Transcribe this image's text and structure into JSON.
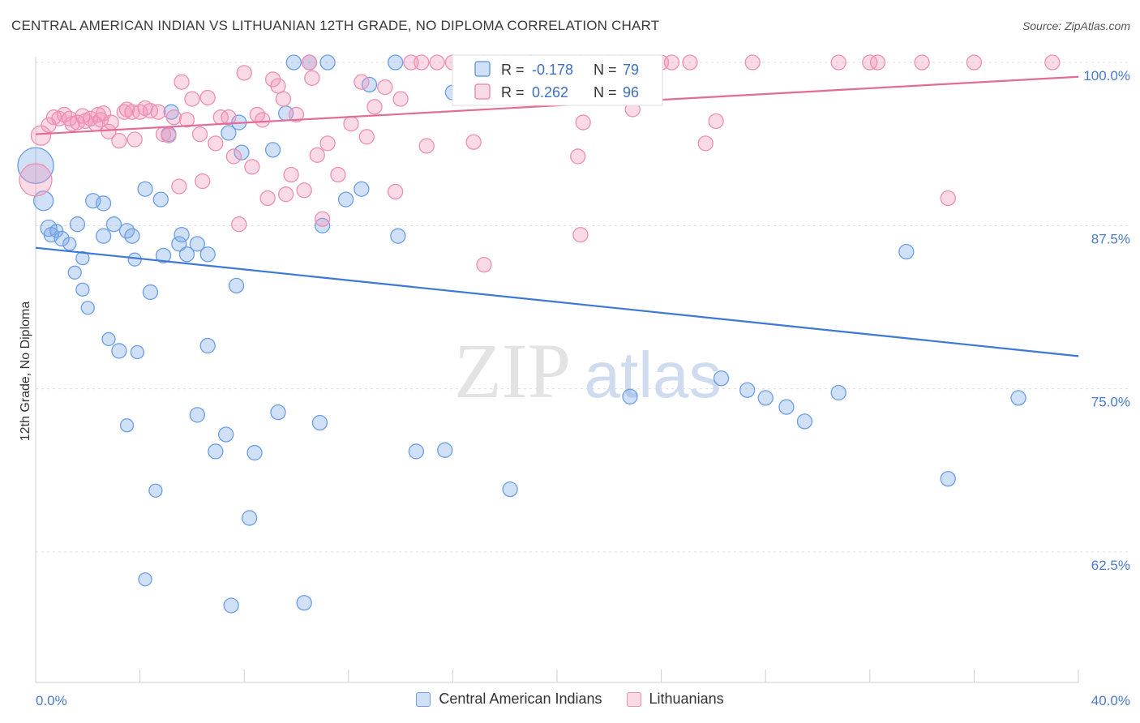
{
  "header": {
    "title": "CENTRAL AMERICAN INDIAN VS LITHUANIAN 12TH GRADE, NO DIPLOMA CORRELATION CHART",
    "source": "Source: ZipAtlas.com"
  },
  "watermark": {
    "zip": "ZIP",
    "atlas": "atlas"
  },
  "legend": {
    "r_label": "R =",
    "n_label": "N =",
    "rows": [
      {
        "r": "-0.178",
        "n": "79",
        "color": "#6b9ee6"
      },
      {
        "r": "0.262",
        "n": "96",
        "color": "#ee8fb0"
      }
    ]
  },
  "chart_data": {
    "type": "scatter",
    "title": "CENTRAL AMERICAN INDIAN VS LITHUANIAN 12TH GRADE, NO DIPLOMA CORRELATION CHART",
    "xlabel": "",
    "ylabel": "12th Grade, No Diploma",
    "xlim": [
      0,
      40
    ],
    "ylim": [
      52.5,
      100
    ],
    "x_tick_labels": [
      "0.0%",
      "40.0%"
    ],
    "y_ticks": [
      62.5,
      75.0,
      87.5,
      100.0
    ],
    "y_tick_labels": [
      "62.5%",
      "75.0%",
      "87.5%",
      "100.0%"
    ],
    "grid": "dashed-horizontal",
    "legend_position": "top-center",
    "series": [
      {
        "name": "Central American Indians",
        "color": "#6b9ee6",
        "fill": "rgba(120,165,230,0.35)",
        "trend": {
          "x": [
            0,
            40
          ],
          "y": [
            85.8,
            77.5
          ]
        },
        "points": [
          [
            0.0,
            92.1,
            22
          ],
          [
            0.3,
            89.4,
            12
          ],
          [
            0.5,
            87.3,
            10
          ],
          [
            0.6,
            86.8,
            9
          ],
          [
            0.8,
            87.1,
            8
          ],
          [
            1.0,
            86.5,
            9
          ],
          [
            1.3,
            86.1,
            8
          ],
          [
            1.5,
            83.9,
            8
          ],
          [
            1.6,
            87.6,
            9
          ],
          [
            1.8,
            82.6,
            8
          ],
          [
            1.8,
            85.0,
            8
          ],
          [
            2.0,
            81.2,
            8
          ],
          [
            2.2,
            89.4,
            9
          ],
          [
            2.6,
            86.7,
            9
          ],
          [
            2.6,
            89.2,
            9
          ],
          [
            2.8,
            78.8,
            8
          ],
          [
            3.0,
            87.6,
            9
          ],
          [
            3.2,
            77.9,
            9
          ],
          [
            3.5,
            87.1,
            9
          ],
          [
            3.5,
            72.2,
            8
          ],
          [
            3.7,
            86.7,
            9
          ],
          [
            3.8,
            84.9,
            8
          ],
          [
            3.9,
            77.8,
            8
          ],
          [
            4.2,
            90.3,
            9
          ],
          [
            4.2,
            60.4,
            8
          ],
          [
            4.4,
            82.4,
            9
          ],
          [
            4.6,
            67.2,
            8
          ],
          [
            4.8,
            89.5,
            9
          ],
          [
            4.9,
            85.2,
            9
          ],
          [
            5.1,
            94.5,
            9
          ],
          [
            5.2,
            96.2,
            9
          ],
          [
            5.5,
            86.1,
            9
          ],
          [
            5.6,
            86.8,
            9
          ],
          [
            5.8,
            85.3,
            9
          ],
          [
            6.2,
            86.1,
            9
          ],
          [
            6.2,
            73.0,
            9
          ],
          [
            6.6,
            85.3,
            9
          ],
          [
            6.6,
            78.3,
            9
          ],
          [
            6.9,
            70.2,
            9
          ],
          [
            7.3,
            71.5,
            9
          ],
          [
            7.4,
            94.6,
            9
          ],
          [
            7.5,
            58.4,
            9
          ],
          [
            7.7,
            82.9,
            9
          ],
          [
            7.8,
            95.4,
            9
          ],
          [
            7.9,
            93.1,
            9
          ],
          [
            8.2,
            65.1,
            9
          ],
          [
            8.4,
            70.1,
            9
          ],
          [
            9.1,
            93.3,
            9
          ],
          [
            9.3,
            73.2,
            9
          ],
          [
            9.6,
            96.1,
            9
          ],
          [
            9.9,
            100.0,
            9
          ],
          [
            10.3,
            58.6,
            9
          ],
          [
            10.5,
            100.0,
            9
          ],
          [
            10.9,
            72.4,
            9
          ],
          [
            11.0,
            87.5,
            9
          ],
          [
            11.2,
            100.0,
            9
          ],
          [
            11.9,
            89.5,
            9
          ],
          [
            12.5,
            90.3,
            9
          ],
          [
            12.8,
            98.3,
            9
          ],
          [
            13.8,
            100.0,
            9
          ],
          [
            13.9,
            86.7,
            9
          ],
          [
            14.6,
            70.2,
            9
          ],
          [
            15.7,
            70.3,
            9
          ],
          [
            16.0,
            97.7,
            9
          ],
          [
            17.2,
            100.0,
            9
          ],
          [
            18.2,
            67.3,
            9
          ],
          [
            19.0,
            100.0,
            9
          ],
          [
            20.9,
            100.0,
            9
          ],
          [
            22.8,
            74.4,
            9
          ],
          [
            26.3,
            75.8,
            9
          ],
          [
            27.3,
            74.9,
            9
          ],
          [
            28.0,
            74.3,
            9
          ],
          [
            28.8,
            73.6,
            9
          ],
          [
            29.5,
            72.5,
            9
          ],
          [
            30.8,
            74.7,
            9
          ],
          [
            33.4,
            85.5,
            9
          ],
          [
            35.0,
            68.1,
            9
          ],
          [
            37.7,
            74.3,
            9
          ]
        ]
      },
      {
        "name": "Lithuanians",
        "color": "#ee8fb0",
        "fill": "rgba(240,150,185,0.35)",
        "trend": {
          "x": [
            0,
            40
          ],
          "y": [
            94.5,
            98.9
          ]
        },
        "points": [
          [
            0.0,
            91.0,
            20
          ],
          [
            0.2,
            94.4,
            12
          ],
          [
            0.5,
            95.2,
            9
          ],
          [
            0.7,
            95.8,
            9
          ],
          [
            0.9,
            95.7,
            9
          ],
          [
            1.1,
            96.0,
            9
          ],
          [
            1.3,
            95.7,
            9
          ],
          [
            1.4,
            95.3,
            9
          ],
          [
            1.6,
            95.4,
            9
          ],
          [
            1.8,
            95.9,
            9
          ],
          [
            1.9,
            95.5,
            9
          ],
          [
            2.1,
            95.7,
            9
          ],
          [
            2.3,
            95.3,
            9
          ],
          [
            2.4,
            96.0,
            9
          ],
          [
            2.5,
            95.6,
            9
          ],
          [
            2.6,
            96.1,
            9
          ],
          [
            2.8,
            94.7,
            9
          ],
          [
            2.9,
            95.4,
            9
          ],
          [
            3.2,
            94.0,
            9
          ],
          [
            3.4,
            96.2,
            9
          ],
          [
            3.5,
            96.4,
            9
          ],
          [
            3.7,
            96.2,
            9
          ],
          [
            3.8,
            94.1,
            9
          ],
          [
            4.0,
            96.2,
            9
          ],
          [
            4.2,
            96.5,
            9
          ],
          [
            4.4,
            96.3,
            9
          ],
          [
            4.7,
            96.2,
            9
          ],
          [
            4.9,
            94.5,
            9
          ],
          [
            5.1,
            94.4,
            9
          ],
          [
            5.3,
            95.8,
            9
          ],
          [
            5.5,
            90.5,
            9
          ],
          [
            5.6,
            98.5,
            9
          ],
          [
            5.8,
            95.6,
            9
          ],
          [
            6.0,
            97.2,
            9
          ],
          [
            6.3,
            94.5,
            9
          ],
          [
            6.4,
            90.9,
            9
          ],
          [
            6.6,
            97.3,
            9
          ],
          [
            6.9,
            93.8,
            9
          ],
          [
            7.1,
            95.8,
            9
          ],
          [
            7.4,
            95.8,
            9
          ],
          [
            7.6,
            92.8,
            9
          ],
          [
            7.8,
            87.6,
            9
          ],
          [
            8.0,
            99.2,
            9
          ],
          [
            8.3,
            92.0,
            9
          ],
          [
            8.5,
            96.0,
            9
          ],
          [
            8.7,
            95.6,
            9
          ],
          [
            8.9,
            89.6,
            9
          ],
          [
            9.1,
            98.7,
            9
          ],
          [
            9.3,
            98.2,
            9
          ],
          [
            9.5,
            97.2,
            9
          ],
          [
            9.6,
            89.9,
            9
          ],
          [
            9.8,
            91.4,
            9
          ],
          [
            10.0,
            96.0,
            9
          ],
          [
            10.3,
            90.2,
            9
          ],
          [
            10.5,
            100.0,
            9
          ],
          [
            10.6,
            98.8,
            9
          ],
          [
            10.8,
            92.9,
            9
          ],
          [
            11.0,
            88.0,
            9
          ],
          [
            11.2,
            93.8,
            9
          ],
          [
            11.6,
            91.4,
            9
          ],
          [
            12.1,
            95.3,
            9
          ],
          [
            12.5,
            98.5,
            9
          ],
          [
            12.7,
            94.3,
            9
          ],
          [
            13.0,
            96.6,
            9
          ],
          [
            13.4,
            98.1,
            9
          ],
          [
            13.8,
            90.1,
            9
          ],
          [
            14.0,
            97.2,
            9
          ],
          [
            14.4,
            100.0,
            9
          ],
          [
            14.8,
            100.0,
            9
          ],
          [
            15.0,
            93.6,
            9
          ],
          [
            15.4,
            100.0,
            9
          ],
          [
            16.0,
            100.0,
            9
          ],
          [
            16.8,
            93.9,
            9
          ],
          [
            17.2,
            84.5,
            9
          ],
          [
            18.0,
            100.0,
            9
          ],
          [
            19.0,
            100.0,
            9
          ],
          [
            19.2,
            100.0,
            9
          ],
          [
            20.8,
            92.8,
            9
          ],
          [
            20.9,
            86.8,
            9
          ],
          [
            21.0,
            95.4,
            9
          ],
          [
            22.0,
            100.0,
            9
          ],
          [
            22.5,
            100.0,
            9
          ],
          [
            22.9,
            96.4,
            9
          ],
          [
            24.0,
            100.0,
            9
          ],
          [
            24.4,
            100.0,
            9
          ],
          [
            25.1,
            100.0,
            9
          ],
          [
            25.7,
            93.8,
            9
          ],
          [
            26.1,
            95.5,
            9
          ],
          [
            27.5,
            100.0,
            9
          ],
          [
            30.8,
            100.0,
            9
          ],
          [
            32.0,
            100.0,
            9
          ],
          [
            32.3,
            100.0,
            9
          ],
          [
            34.0,
            100.0,
            9
          ],
          [
            35.0,
            89.6,
            9
          ],
          [
            36.0,
            100.0,
            9
          ],
          [
            39.0,
            100.0,
            9
          ]
        ]
      }
    ]
  }
}
